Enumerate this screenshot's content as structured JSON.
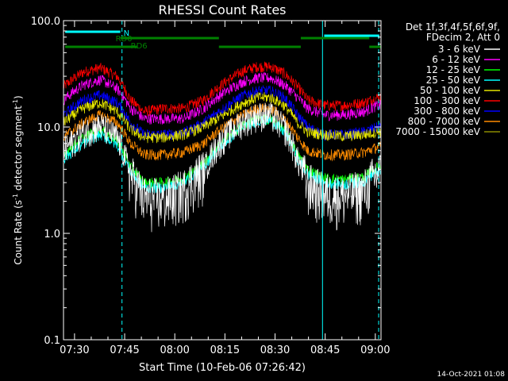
{
  "chart_data": {
    "type": "line",
    "title": "RHESSI Count Rates",
    "xlabel": "Start Time (10-Feb-06 07:26:42)",
    "ylabel_main": "Count Rate (s",
    "ylabel_sup1": "-1",
    "ylabel_mid": " detector segment",
    "ylabel_sup2": "-1",
    "ylabel_end": ")",
    "y_scale": "log",
    "ylim": [
      0.1,
      100
    ],
    "xlim_minutes": [
      0,
      95
    ],
    "y_ticks": [
      {
        "value": 0.1,
        "label": "0.1"
      },
      {
        "value": 1,
        "label": "1.0"
      },
      {
        "value": 10,
        "label": "10.0"
      },
      {
        "value": 100,
        "label": "100.0"
      }
    ],
    "x_ticks": [
      {
        "minute": 3.3,
        "label": "07:30"
      },
      {
        "minute": 18.3,
        "label": "07:45"
      },
      {
        "minute": 33.3,
        "label": "08:00"
      },
      {
        "minute": 48.3,
        "label": "08:15"
      },
      {
        "minute": 63.3,
        "label": "08:30"
      },
      {
        "minute": 78.3,
        "label": "08:45"
      },
      {
        "minute": 93.3,
        "label": "09:00"
      }
    ],
    "legend_header1": "Det 1f,3f,4f,5f,6f,9f,",
    "legend_header2": "FDecim 2, Att 0",
    "legend_position": "right",
    "series": [
      {
        "name": "3 - 6 keV",
        "color": "#ffffff"
      },
      {
        "name": "6 - 12 keV",
        "color": "#ff00ff"
      },
      {
        "name": "12 - 25 keV",
        "color": "#00ff00"
      },
      {
        "name": "25 - 50 keV",
        "color": "#00ffff"
      },
      {
        "name": "50 - 100 keV",
        "color": "#e6e600"
      },
      {
        "name": "100 - 300 keV",
        "color": "#ff0000"
      },
      {
        "name": "300 - 800 keV",
        "color": "#0000ff"
      },
      {
        "name": "800 - 7000 keV",
        "color": "#ff8c00"
      },
      {
        "name": "7000 - 15000 keV",
        "color": "#8b8b00"
      }
    ],
    "trace_levels": [
      {
        "color": "#ff0000",
        "points": [
          [
            0,
            24
          ],
          [
            6,
            33
          ],
          [
            11,
            36
          ],
          [
            16,
            30
          ],
          [
            20,
            18
          ],
          [
            24,
            14
          ],
          [
            30,
            15
          ],
          [
            36,
            15
          ],
          [
            42,
            18
          ],
          [
            48,
            26
          ],
          [
            54,
            34
          ],
          [
            58,
            37
          ],
          [
            62,
            37
          ],
          [
            66,
            32
          ],
          [
            70,
            24
          ],
          [
            73,
            18
          ],
          [
            78,
            16
          ],
          [
            84,
            16
          ],
          [
            90,
            17
          ],
          [
            94,
            19
          ]
        ]
      },
      {
        "color": "#ff00ff",
        "points": [
          [
            0,
            18
          ],
          [
            6,
            25
          ],
          [
            11,
            28
          ],
          [
            16,
            23
          ],
          [
            20,
            15
          ],
          [
            24,
            12
          ],
          [
            30,
            12
          ],
          [
            36,
            12
          ],
          [
            42,
            15
          ],
          [
            48,
            21
          ],
          [
            54,
            27
          ],
          [
            58,
            29
          ],
          [
            62,
            29
          ],
          [
            66,
            25
          ],
          [
            70,
            19
          ],
          [
            73,
            15
          ],
          [
            78,
            13
          ],
          [
            84,
            13
          ],
          [
            90,
            14
          ],
          [
            94,
            16
          ]
        ]
      },
      {
        "color": "#0000ff",
        "points": [
          [
            0,
            13
          ],
          [
            6,
            18
          ],
          [
            11,
            20
          ],
          [
            16,
            17
          ],
          [
            20,
            11
          ],
          [
            24,
            8.5
          ],
          [
            30,
            8.5
          ],
          [
            36,
            8.8
          ],
          [
            42,
            11
          ],
          [
            48,
            15
          ],
          [
            54,
            20
          ],
          [
            58,
            22
          ],
          [
            62,
            22
          ],
          [
            66,
            19
          ],
          [
            70,
            13
          ],
          [
            73,
            10
          ],
          [
            78,
            8.5
          ],
          [
            84,
            8.5
          ],
          [
            90,
            9
          ],
          [
            94,
            10
          ]
        ]
      },
      {
        "color": "#e6e600",
        "points": [
          [
            0,
            11
          ],
          [
            6,
            15
          ],
          [
            11,
            17
          ],
          [
            16,
            14
          ],
          [
            20,
            9.5
          ],
          [
            24,
            8
          ],
          [
            30,
            8
          ],
          [
            36,
            8.5
          ],
          [
            42,
            10
          ],
          [
            48,
            13
          ],
          [
            54,
            17
          ],
          [
            58,
            19
          ],
          [
            62,
            19
          ],
          [
            66,
            16
          ],
          [
            70,
            11
          ],
          [
            73,
            9
          ],
          [
            78,
            8.5
          ],
          [
            84,
            8.2
          ],
          [
            90,
            8.5
          ],
          [
            94,
            9
          ]
        ]
      },
      {
        "color": "#ff8c00",
        "points": [
          [
            0,
            8
          ],
          [
            6,
            11
          ],
          [
            11,
            13
          ],
          [
            16,
            11
          ],
          [
            20,
            7
          ],
          [
            24,
            5.5
          ],
          [
            30,
            5.5
          ],
          [
            36,
            5.8
          ],
          [
            42,
            7
          ],
          [
            48,
            10
          ],
          [
            54,
            13
          ],
          [
            58,
            15
          ],
          [
            62,
            15
          ],
          [
            66,
            12
          ],
          [
            70,
            8
          ],
          [
            73,
            6
          ],
          [
            78,
            5.5
          ],
          [
            84,
            5.5
          ],
          [
            90,
            5.8
          ],
          [
            94,
            6.5
          ]
        ]
      },
      {
        "color": "#00ff00",
        "points": [
          [
            0,
            5.5
          ],
          [
            6,
            8
          ],
          [
            11,
            9.5
          ],
          [
            16,
            7.5
          ],
          [
            20,
            4.2
          ],
          [
            24,
            3
          ],
          [
            30,
            3
          ],
          [
            36,
            3.3
          ],
          [
            42,
            4.5
          ],
          [
            48,
            7.5
          ],
          [
            54,
            10.5
          ],
          [
            58,
            12
          ],
          [
            62,
            12
          ],
          [
            66,
            9.5
          ],
          [
            70,
            5.5
          ],
          [
            73,
            4
          ],
          [
            78,
            3.3
          ],
          [
            84,
            3.2
          ],
          [
            90,
            3.4
          ],
          [
            94,
            4.2
          ]
        ]
      },
      {
        "color": "#00ffff",
        "points": [
          [
            0,
            5
          ],
          [
            6,
            7
          ],
          [
            11,
            8.5
          ],
          [
            16,
            6.8
          ],
          [
            20,
            3.8
          ],
          [
            24,
            2.7
          ],
          [
            30,
            2.7
          ],
          [
            36,
            3
          ],
          [
            42,
            4.2
          ],
          [
            48,
            7
          ],
          [
            54,
            10
          ],
          [
            58,
            11.5
          ],
          [
            62,
            11.5
          ],
          [
            66,
            9
          ],
          [
            70,
            5
          ],
          [
            73,
            3.6
          ],
          [
            78,
            3
          ],
          [
            84,
            2.9
          ],
          [
            90,
            3.1
          ],
          [
            94,
            3.8
          ]
        ]
      },
      {
        "color": "#ffffff",
        "points": [
          [
            0,
            6
          ],
          [
            6,
            9
          ],
          [
            11,
            10.5
          ],
          [
            16,
            8
          ],
          [
            20,
            3.6
          ],
          [
            24,
            2.2
          ],
          [
            30,
            2.1
          ],
          [
            36,
            2.6
          ],
          [
            42,
            4
          ],
          [
            48,
            8
          ],
          [
            54,
            11.5
          ],
          [
            58,
            13
          ],
          [
            62,
            13
          ],
          [
            66,
            10
          ],
          [
            70,
            5
          ],
          [
            73,
            3
          ],
          [
            78,
            2.4
          ],
          [
            84,
            2.3
          ],
          [
            90,
            2.6
          ],
          [
            94,
            3.8
          ]
        ]
      }
    ],
    "vlines": [
      {
        "minute": 0,
        "style": "solid",
        "color": "#00ffff"
      },
      {
        "minute": 17.5,
        "style": "dashed",
        "color": "#00ffff"
      },
      {
        "minute": 77.5,
        "style": "solid",
        "color": "#00ffff"
      },
      {
        "minute": 94.3,
        "style": "dashed",
        "color": "#00ffff"
      }
    ],
    "flag_bars": [
      {
        "label": "N",
        "color": "#00ffff",
        "segments": [
          [
            0.5,
            17
          ]
        ]
      },
      {
        "label": "",
        "color": "#00ffff",
        "segments": [
          [
            78,
            94.5
          ]
        ]
      },
      {
        "label": "RD0",
        "color": "#008000",
        "segments": [
          [
            17,
            46.5
          ],
          [
            71,
            91.5
          ]
        ]
      },
      {
        "label": "RD6",
        "color": "#008000",
        "segments": [
          [
            0.5,
            22
          ],
          [
            46.5,
            71
          ],
          [
            91.5,
            95
          ]
        ]
      }
    ],
    "footer_date": "14-Oct-2021 01:08"
  }
}
